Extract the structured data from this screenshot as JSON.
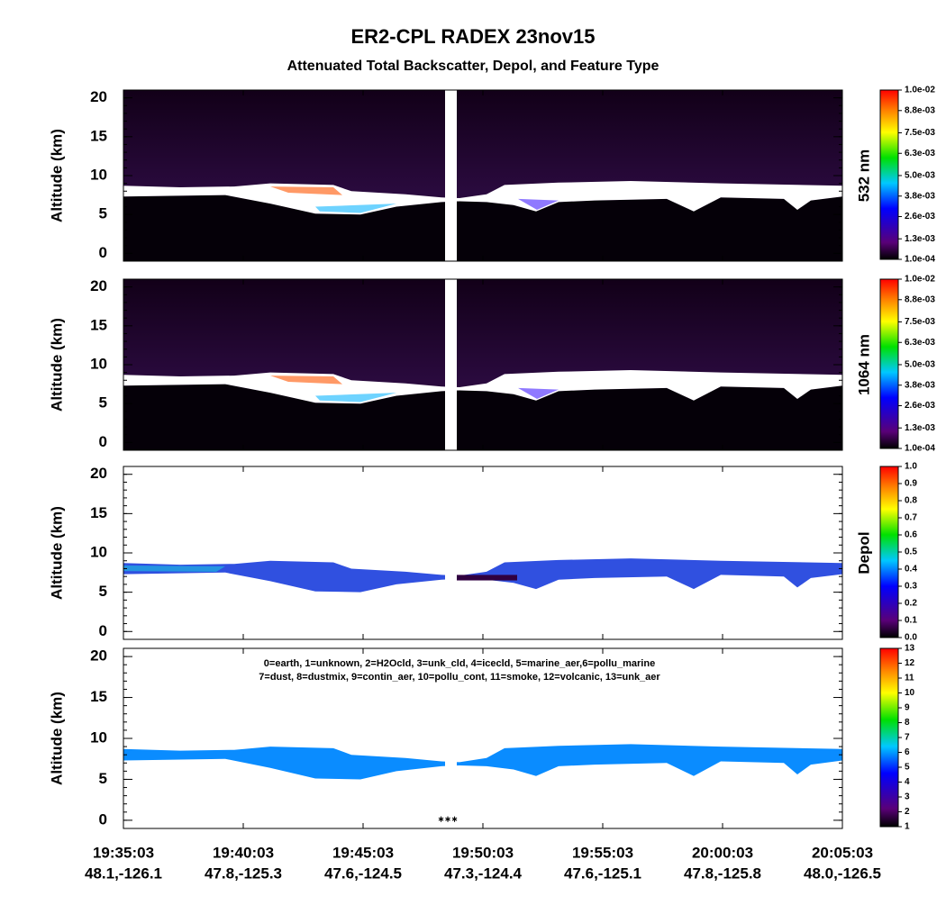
{
  "figure": {
    "title": "ER2-CPL RADEX 23nov15",
    "subtitle": "Attenuated Total Backscatter, Depol, and Feature Type",
    "xticks": [
      "19:35:03",
      "19:40:03",
      "19:45:03",
      "19:50:03",
      "19:55:03",
      "20:00:03",
      "20:05:03"
    ],
    "xtick_sublabels": [
      "48.1,-126.1",
      "47.8,-125.3",
      "47.6,-124.5",
      "47.3,-124.4",
      "47.6,-125.1",
      "47.8,-125.8",
      "48.0,-126.5"
    ]
  },
  "chart_data": [
    {
      "type": "heatmap",
      "ylabel": "Altitude (km)",
      "ylim": [
        -1,
        21
      ],
      "yticks": [
        0,
        5,
        10,
        15,
        20
      ],
      "colorbar": {
        "label": "532 nm",
        "lim": [
          0.0001,
          0.01
        ],
        "ticks": [
          {
            "value": 0.0001,
            "label": "1.0e-04"
          },
          {
            "value": 0.0013,
            "label": "1.3e-03"
          },
          {
            "value": 0.0026,
            "label": "2.6e-03"
          },
          {
            "value": 0.0038,
            "label": "3.8e-03"
          },
          {
            "value": 0.005,
            "label": "5.0e-03"
          },
          {
            "value": 0.0063,
            "label": "6.3e-03"
          },
          {
            "value": 0.0075,
            "label": "7.5e-03"
          },
          {
            "value": 0.0088,
            "label": "8.8e-03"
          },
          {
            "value": 0.01,
            "label": "1.0e-02"
          }
        ]
      }
    },
    {
      "type": "heatmap",
      "ylabel": "Altitude (km)",
      "ylim": [
        -1,
        21
      ],
      "yticks": [
        0,
        5,
        10,
        15,
        20
      ],
      "colorbar": {
        "label": "1064 nm",
        "lim": [
          0.0001,
          0.01
        ],
        "ticks": [
          {
            "value": 0.0001,
            "label": "1.0e-04"
          },
          {
            "value": 0.0013,
            "label": "1.3e-03"
          },
          {
            "value": 0.0026,
            "label": "2.6e-03"
          },
          {
            "value": 0.0038,
            "label": "3.8e-03"
          },
          {
            "value": 0.005,
            "label": "5.0e-03"
          },
          {
            "value": 0.0063,
            "label": "6.3e-03"
          },
          {
            "value": 0.0075,
            "label": "7.5e-03"
          },
          {
            "value": 0.0088,
            "label": "8.8e-03"
          },
          {
            "value": 0.01,
            "label": "1.0e-02"
          }
        ]
      }
    },
    {
      "type": "heatmap",
      "ylabel": "Altitude (km)",
      "ylim": [
        -1,
        21
      ],
      "yticks": [
        0,
        5,
        10,
        15,
        20
      ],
      "colorbar": {
        "label": "Depol",
        "lim": [
          0,
          1
        ],
        "ticks": [
          {
            "value": 0,
            "label": "0.0"
          },
          0.1,
          0.2,
          0.3,
          0.4,
          0.5,
          0.6,
          0.7,
          0.8,
          0.9,
          {
            "value": 1,
            "label": "1.0"
          }
        ]
      }
    },
    {
      "type": "heatmap",
      "ylabel": "Altitude (km)",
      "ylim": [
        -1,
        21
      ],
      "yticks": [
        0,
        5,
        10,
        15,
        20
      ],
      "legend": [
        "0=earth, 1=unknown, 2=H2Ocld, 3=unk_cld, 4=icecld, 5=marine_aer,6=pollu_marine",
        "7=dust, 8=dustmix, 9=contin_aer, 10=pollu_cont, 11=smoke, 12=volcanic, 13=unk_aer"
      ],
      "colorbar": {
        "lim": [
          1,
          13
        ],
        "ticks": [
          1,
          2,
          3,
          4,
          5,
          6,
          7,
          8,
          9,
          10,
          11,
          12,
          13
        ]
      }
    }
  ]
}
